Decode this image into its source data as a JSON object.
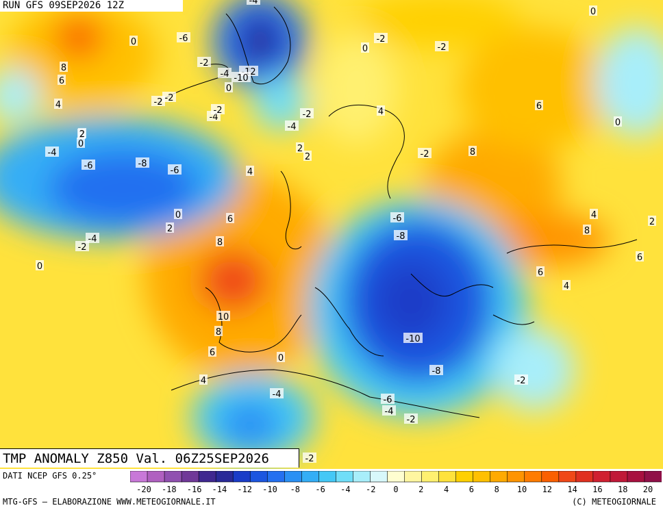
{
  "header": {
    "run_label": "RUN GFS 09SEP2026 12Z"
  },
  "footer": {
    "map_title": "TMP ANOMALY Z850 Val. 06Z25SEP2026",
    "data_source": "DATI NCEP GFS 0.25°",
    "credit_left": "MTG-GFS — ELABORAZIONE WWW.METEOGIORNALE.IT",
    "credit_right": "(C) METEOGIORNALE"
  },
  "legend": {
    "ticks": [
      "-20",
      "-18",
      "-16",
      "-14",
      "-12",
      "-10",
      "-8",
      "-6",
      "-4",
      "-2",
      "0",
      "2",
      "4",
      "6",
      "8",
      "10",
      "12",
      "14",
      "16",
      "18",
      "20"
    ],
    "colors": [
      "#c878d8",
      "#b060c0",
      "#9050b0",
      "#703898",
      "#402890",
      "#2a2a98",
      "#1a3cc8",
      "#1c56e0",
      "#2470f0",
      "#2a90f4",
      "#34aef6",
      "#44c8f6",
      "#70def8",
      "#a8eefa",
      "#d8f8fb",
      "#fffed0",
      "#fff6a0",
      "#fff070",
      "#ffe23c",
      "#ffd000",
      "#ffc000",
      "#ffaa00",
      "#ff9400",
      "#ff7c00",
      "#fa6000",
      "#f04818",
      "#e03020",
      "#d02030",
      "#c01838",
      "#a81040",
      "#901048"
    ]
  },
  "contour_labels": [
    "-4",
    "-6",
    "0",
    "-2",
    "-4",
    "-12",
    "-10",
    "0",
    "-2",
    "-2",
    "-4",
    "2",
    "2",
    "2",
    "8",
    "6",
    "4",
    "2",
    "0",
    "-2",
    "-4",
    "-4",
    "-6",
    "-8",
    "-6",
    "0",
    "2",
    "4",
    "0",
    "-2",
    "6",
    "8",
    "10",
    "8",
    "6",
    "4",
    "0",
    "-4",
    "-2",
    "-4",
    "-6",
    "-8",
    "-10",
    "-8",
    "-6",
    "-4",
    "-2",
    "-2",
    "4",
    "-2",
    "8",
    "6",
    "0",
    "0",
    "4",
    "8",
    "2",
    "6",
    "6",
    "4",
    "-2",
    "-2",
    "-2",
    "0"
  ]
}
